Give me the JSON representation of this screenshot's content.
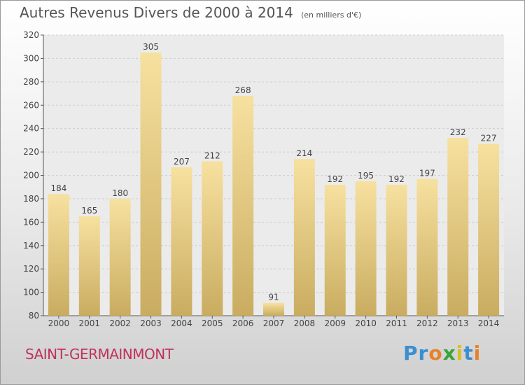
{
  "header": {
    "title": "Autres Revenus Divers de 2000 à 2014",
    "unit": "(en milliers d'€)"
  },
  "footer": {
    "place": "SAINT-GERMAINMONT",
    "logo": "Proxiti"
  },
  "colors": {
    "bar_top": "#f7e1a0",
    "bar_bottom": "#c9ac60",
    "grid": "#cfcfcf",
    "axis": "#555555",
    "place": "#c0315a"
  },
  "chart_data": {
    "type": "bar",
    "title": "Autres Revenus Divers de 2000 à 2014",
    "subtitle": "(en milliers d'€)",
    "categories": [
      "2000",
      "2001",
      "2002",
      "2003",
      "2004",
      "2005",
      "2006",
      "2007",
      "2008",
      "2009",
      "2010",
      "2011",
      "2012",
      "2013",
      "2014"
    ],
    "values": [
      184,
      165,
      180,
      305,
      207,
      212,
      268,
      91,
      214,
      192,
      195,
      192,
      197,
      232,
      227
    ],
    "ylim": [
      80,
      320
    ],
    "yticks": [
      80,
      100,
      120,
      140,
      160,
      180,
      200,
      220,
      240,
      260,
      280,
      300,
      320
    ],
    "grid": true,
    "data_labels": true
  }
}
